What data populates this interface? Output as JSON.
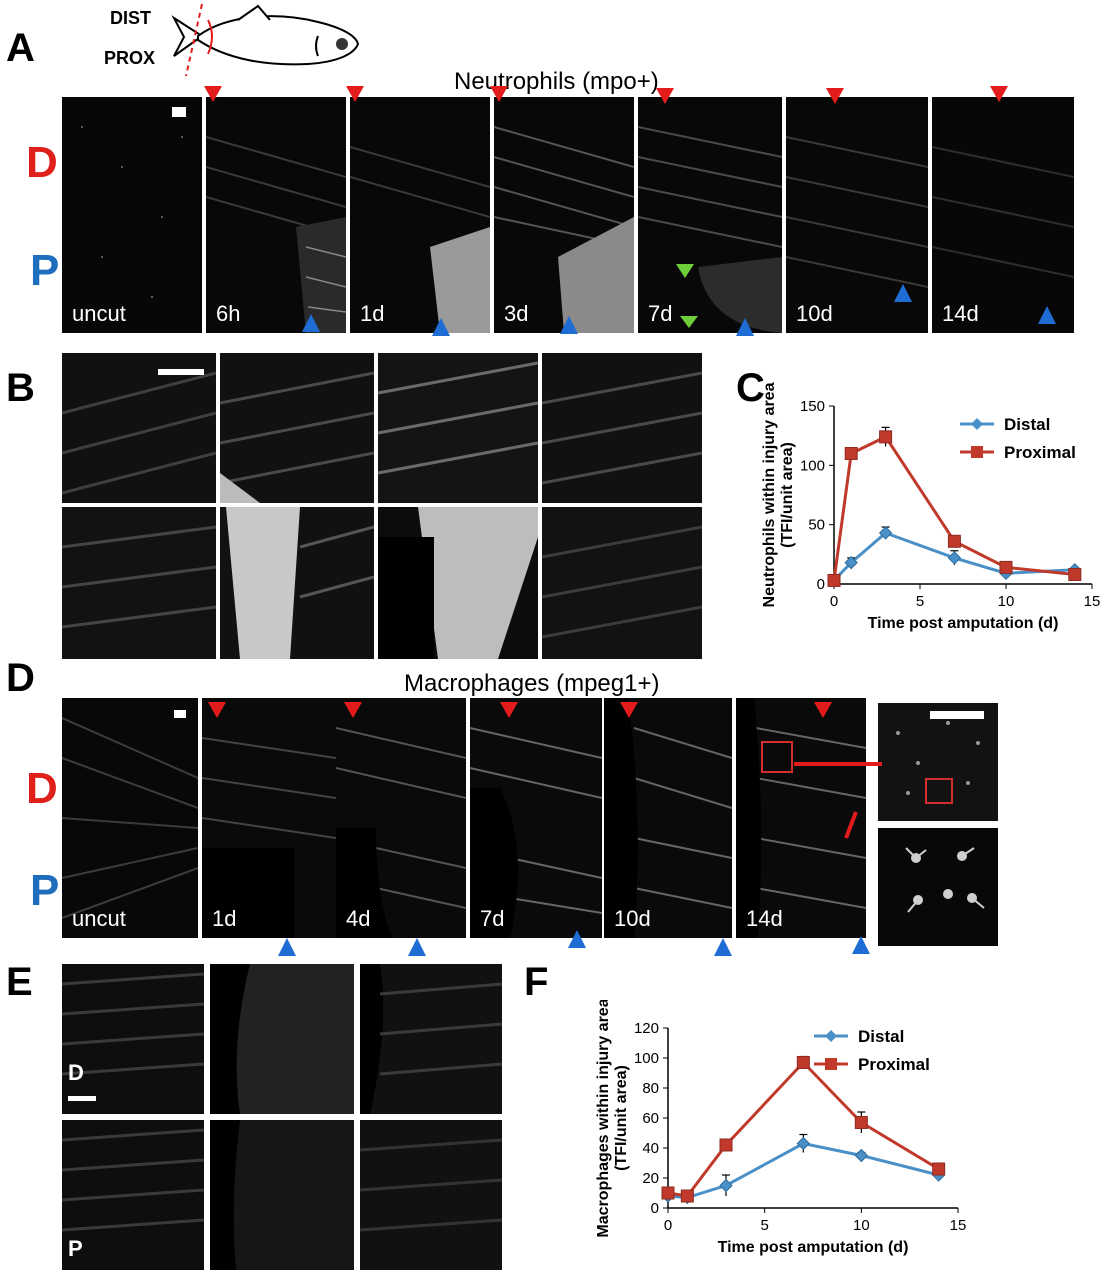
{
  "panel_letters": {
    "a": "A",
    "b": "B",
    "c": "C",
    "d": "D",
    "e": "E",
    "f": "F"
  },
  "schematic": {
    "dist_label": "DIST",
    "prox_label": "PROX"
  },
  "panelA": {
    "title": "Neutrophils (mpo+)",
    "d_label": "D",
    "p_label": "P",
    "timepoints": [
      "uncut",
      "6h",
      "1d",
      "3d",
      "7d",
      "10d",
      "14d"
    ]
  },
  "panelD": {
    "title": "Macrophages (mpeg1+)",
    "d_label": "D",
    "p_label": "P",
    "timepoints": [
      "uncut",
      "1d",
      "4d",
      "7d",
      "10d",
      "14d"
    ]
  },
  "panelE": {
    "d_label": "D",
    "p_label": "P"
  },
  "colors": {
    "distal": "#4a90c8",
    "proximal": "#c0392b",
    "arrow_red": "#e31b1b",
    "arrow_blue": "#1f6dd4",
    "arrow_green": "#6fcf3a"
  },
  "chart_data": [
    {
      "type": "line",
      "panel": "C",
      "xlabel": "Time post amputation (d)",
      "ylabel_line1": "Neutrophils within injury area",
      "ylabel_line2": "(TFI/unit area)",
      "xlim": [
        0,
        15
      ],
      "ylim": [
        0,
        150
      ],
      "xticks": [
        0,
        5,
        10,
        15
      ],
      "yticks": [
        0,
        50,
        100,
        150
      ],
      "legend_position": "top-right",
      "series": [
        {
          "name": "Distal",
          "x": [
            0,
            1,
            3,
            7,
            10,
            14
          ],
          "y": [
            3,
            18,
            43,
            22,
            9,
            12
          ],
          "err": [
            2,
            4,
            5,
            6,
            3,
            2
          ]
        },
        {
          "name": "Proximal",
          "x": [
            0,
            1,
            3,
            7,
            10,
            14
          ],
          "y": [
            3,
            110,
            124,
            36,
            14,
            8
          ],
          "err": [
            2,
            4,
            8,
            4,
            3,
            2
          ]
        }
      ]
    },
    {
      "type": "line",
      "panel": "F",
      "xlabel": "Time post amputation (d)",
      "ylabel_line1": "Macrophages within injury area",
      "ylabel_line2": "(TFI/unit area)",
      "xlim": [
        0,
        15
      ],
      "ylim": [
        0,
        120
      ],
      "xticks": [
        0,
        5,
        10,
        15
      ],
      "yticks": [
        0,
        20,
        40,
        60,
        80,
        100,
        120
      ],
      "legend_position": "top-right",
      "series": [
        {
          "name": "Distal",
          "x": [
            0,
            1,
            3,
            7,
            10,
            14
          ],
          "y": [
            8,
            7,
            15,
            43,
            35,
            22
          ],
          "err": [
            3,
            2,
            7,
            6,
            2,
            3
          ]
        },
        {
          "name": "Proximal",
          "x": [
            0,
            1,
            3,
            7,
            10,
            14
          ],
          "y": [
            10,
            8,
            42,
            97,
            57,
            26
          ],
          "err": [
            3,
            2,
            2,
            4,
            7,
            2
          ]
        }
      ]
    }
  ]
}
